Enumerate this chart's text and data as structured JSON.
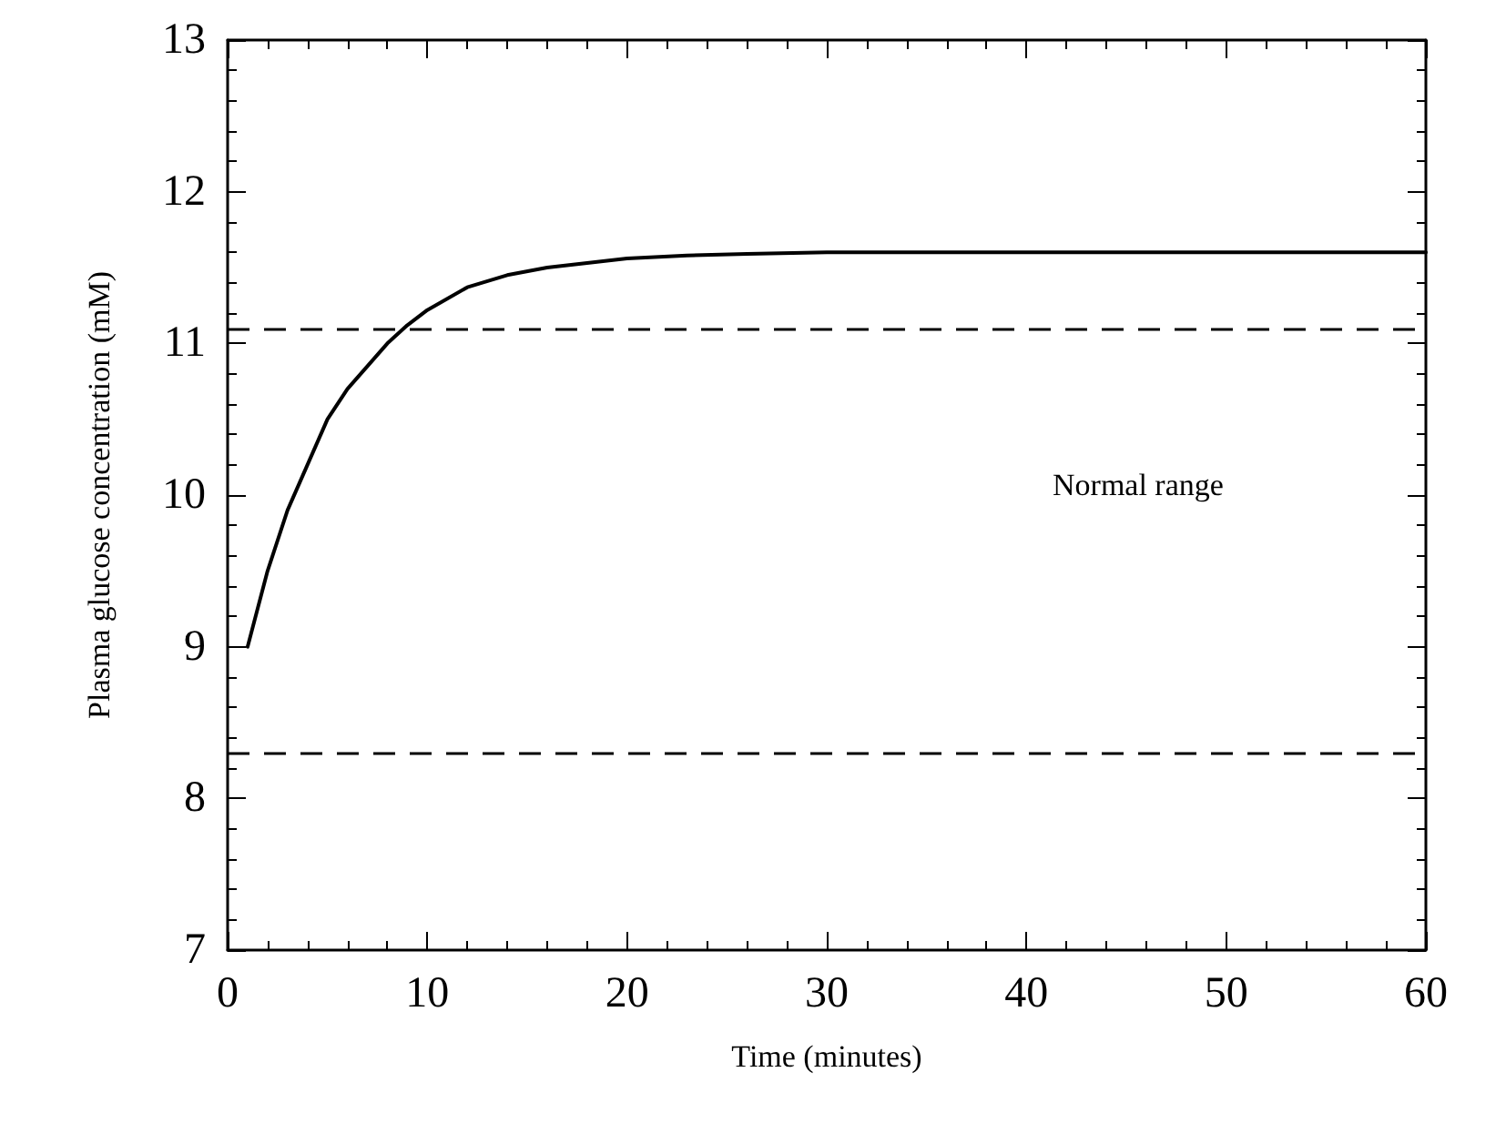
{
  "chart_data": {
    "type": "line",
    "xlabel": "Time (minutes)",
    "ylabel": "Plasma glucose concentration (mM)",
    "xlim": [
      0,
      60
    ],
    "xticks": [
      0,
      10,
      20,
      30,
      40,
      50,
      60
    ],
    "ylim": [
      7,
      13
    ],
    "yticks": [
      7,
      8,
      9,
      10,
      11,
      12,
      13
    ],
    "series": [
      {
        "color": "#000000",
        "x": [
          1,
          2,
          3,
          4,
          5,
          6,
          7,
          8,
          9,
          10,
          12,
          14,
          16,
          18,
          20,
          23,
          26,
          30,
          35,
          40,
          45,
          50,
          55,
          60
        ],
        "values": [
          9.0,
          9.5,
          9.9,
          10.2,
          10.5,
          10.7,
          10.85,
          11.0,
          11.12,
          11.22,
          11.37,
          11.45,
          11.5,
          11.53,
          11.56,
          11.58,
          11.59,
          11.6,
          11.6,
          11.6,
          11.6,
          11.6,
          11.6,
          11.6
        ]
      }
    ],
    "ref_lines": [
      {
        "axis": "y",
        "value": 11.1,
        "line_style": "dashed",
        "color": "#000000"
      },
      {
        "axis": "y",
        "value": 8.3,
        "line_style": "dashed",
        "color": "#000000"
      }
    ],
    "annotations": [
      "Normal range"
    ],
    "grid": false,
    "marker": "none",
    "line_style": "solid"
  }
}
